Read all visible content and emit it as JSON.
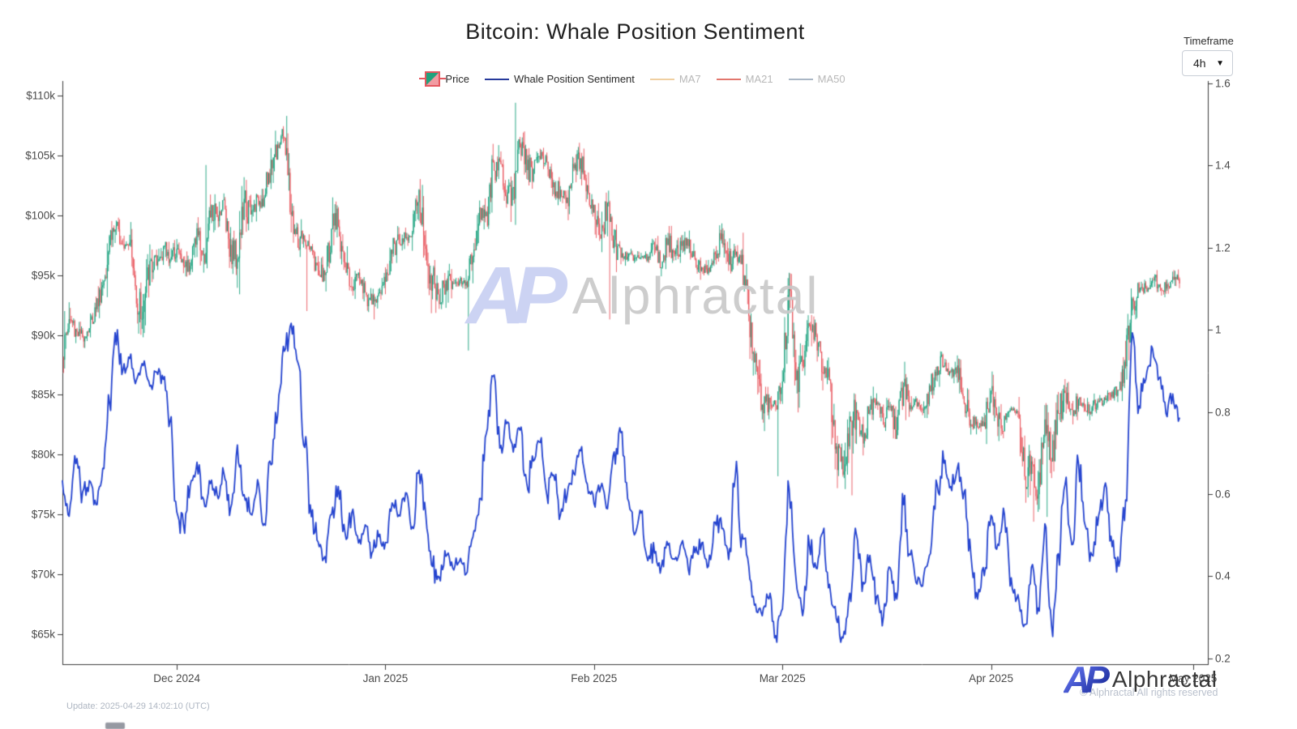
{
  "title": "Bitcoin: Whale Position Sentiment",
  "timeframe": {
    "label": "Timeframe",
    "value": "4h"
  },
  "watermark": {
    "monogram": "AP",
    "text": "Alphractal"
  },
  "footer": {
    "update_text": "Update: 2025-04-29 14:02:10 (UTC)"
  },
  "branding": {
    "monogram": "AP",
    "name": "Alphractal",
    "copyright": "© Alphractal All rights reserved"
  },
  "chart_data": {
    "type": "mixed",
    "title": "Bitcoin: Whale Position Sentiment",
    "grid": false,
    "legend_position": "top-center",
    "legend": [
      {
        "label": "Price",
        "swatch": "candle",
        "color": "#22a27d",
        "muted": false
      },
      {
        "label": "Whale Position Sentiment",
        "swatch": "line",
        "color": "#26399b",
        "muted": false
      },
      {
        "label": "MA7",
        "swatch": "line",
        "color": "#f0cfa0",
        "muted": true
      },
      {
        "label": "MA21",
        "swatch": "line",
        "color": "#e2766d",
        "muted": true
      },
      {
        "label": "MA50",
        "swatch": "line",
        "color": "#a9b6c5",
        "muted": true
      }
    ],
    "start_date": "2024-11-14",
    "interval_days": 1,
    "series": [
      {
        "name": "Price",
        "type": "candlestick",
        "axis": "left",
        "unit": "USD (thousands)",
        "color_up": "#16a07c",
        "color_down": "#e8545b",
        "close_k": [
          88.2,
          91.3,
          90.5,
          89.8,
          90.6,
          92.3,
          94.2,
          98.4,
          99.0,
          97.7,
          98.0,
          93.0,
          91.9,
          95.9,
          95.6,
          97.4,
          96.4,
          97.2,
          95.8,
          96.0,
          98.8,
          96.5,
          99.9,
          99.9,
          101.2,
          97.3,
          96.6,
          101.1,
          100.0,
          101.4,
          101.4,
          104.4,
          106.0,
          106.7,
          100.1,
          97.4,
          97.8,
          97.2,
          95.2,
          94.9,
          98.6,
          99.3,
          95.7,
          94.2,
          95.3,
          93.5,
          92.6,
          93.4,
          94.6,
          96.9,
          98.0,
          98.2,
          98.3,
          102.1,
          96.9,
          95.0,
          92.5,
          94.7,
          94.3,
          94.5,
          94.5,
          96.6,
          100.5,
          100.0,
          104.1,
          104.4,
          101.3,
          102.0,
          106.1,
          103.7,
          103.9,
          104.8,
          104.7,
          102.6,
          102.1,
          101.3,
          103.7,
          104.7,
          102.4,
          100.6,
          97.7,
          101.3,
          97.8,
          96.6,
          96.6,
          96.5,
          96.5,
          96.5,
          97.4,
          95.8,
          97.9,
          96.6,
          97.5,
          97.6,
          96.2,
          95.7,
          95.6,
          96.6,
          98.3,
          96.1,
          96.6,
          96.3,
          91.4,
          88.7,
          84.0,
          84.7,
          84.3,
          86.0,
          94.2,
          86.0,
          87.2,
          90.6,
          89.9,
          86.8,
          86.2,
          80.7,
          78.6,
          82.9,
          83.7,
          81.1,
          83.9,
          84.3,
          82.6,
          84.0,
          81.7,
          85.8,
          84.2,
          84.0,
          83.8,
          85.5,
          87.5,
          87.5,
          86.9,
          87.2,
          84.3,
          82.6,
          82.3,
          82.5,
          85.2,
          82.5,
          83.2,
          83.8,
          83.5,
          78.2,
          79.2,
          76.3,
          82.6,
          79.6,
          83.4,
          85.3,
          83.7,
          84.5,
          83.7,
          84.0,
          84.5,
          84.5,
          85.2,
          85.2,
          87.5,
          93.4,
          93.7,
          94.0,
          94.7,
          94.3,
          93.9,
          95.0,
          94.4
        ],
        "extremes": {
          "2024-11-14": {
            "low": 87.2,
            "high": 92.0
          },
          "2024-11-26": {
            "low": 90.8
          },
          "2024-12-05": {
            "high": 104.2
          },
          "2024-12-10": {
            "low": 93.4
          },
          "2024-12-17": {
            "high": 108.3
          },
          "2024-12-20": {
            "low": 92.0
          },
          "2024-12-30": {
            "low": 91.3
          },
          "2025-01-13": {
            "low": 88.7
          },
          "2025-01-20": {
            "high": 109.4,
            "low": 99.2
          },
          "2025-02-03": {
            "low": 91.3
          },
          "2025-02-28": {
            "low": 78.2
          },
          "2025-03-02": {
            "high": 95.1
          },
          "2025-03-11": {
            "low": 76.6
          },
          "2025-04-07": {
            "low": 74.4
          },
          "2025-04-09": {
            "low": 74.8,
            "high": 83.6
          }
        }
      },
      {
        "name": "Whale Position Sentiment",
        "type": "line",
        "axis": "right",
        "color": "#2544cf",
        "values": [
          0.63,
          0.55,
          0.68,
          0.6,
          0.63,
          0.58,
          0.66,
          0.82,
          0.97,
          0.9,
          0.93,
          0.88,
          0.91,
          0.86,
          0.9,
          0.88,
          0.78,
          0.55,
          0.52,
          0.62,
          0.68,
          0.58,
          0.63,
          0.6,
          0.65,
          0.56,
          0.72,
          0.6,
          0.55,
          0.63,
          0.52,
          0.68,
          0.8,
          0.95,
          1.01,
          0.92,
          0.72,
          0.55,
          0.48,
          0.45,
          0.55,
          0.62,
          0.5,
          0.55,
          0.48,
          0.52,
          0.46,
          0.5,
          0.48,
          0.58,
          0.55,
          0.6,
          0.52,
          0.66,
          0.55,
          0.42,
          0.4,
          0.45,
          0.42,
          0.44,
          0.41,
          0.5,
          0.58,
          0.75,
          0.88,
          0.72,
          0.77,
          0.7,
          0.75,
          0.62,
          0.68,
          0.72,
          0.6,
          0.65,
          0.55,
          0.6,
          0.65,
          0.7,
          0.62,
          0.58,
          0.62,
          0.56,
          0.7,
          0.75,
          0.58,
          0.5,
          0.55,
          0.44,
          0.46,
          0.42,
          0.48,
          0.44,
          0.48,
          0.42,
          0.46,
          0.48,
          0.43,
          0.53,
          0.52,
          0.44,
          0.65,
          0.5,
          0.42,
          0.33,
          0.3,
          0.35,
          0.26,
          0.32,
          0.62,
          0.4,
          0.3,
          0.48,
          0.42,
          0.5,
          0.38,
          0.3,
          0.25,
          0.35,
          0.5,
          0.38,
          0.45,
          0.35,
          0.3,
          0.42,
          0.35,
          0.58,
          0.45,
          0.38,
          0.4,
          0.45,
          0.62,
          0.68,
          0.62,
          0.66,
          0.6,
          0.45,
          0.35,
          0.4,
          0.55,
          0.48,
          0.55,
          0.4,
          0.35,
          0.28,
          0.42,
          0.32,
          0.52,
          0.28,
          0.45,
          0.62,
          0.48,
          0.67,
          0.52,
          0.45,
          0.55,
          0.62,
          0.48,
          0.42,
          0.58,
          1.0,
          0.82,
          0.88,
          0.95,
          0.88,
          0.8,
          0.84,
          0.78
        ]
      }
    ],
    "x_axis": {
      "ticks": [
        {
          "label": "Dec 2024",
          "date": "2024-12-01"
        },
        {
          "label": "Jan 2025",
          "date": "2025-01-01"
        },
        {
          "label": "Feb 2025",
          "date": "2025-02-01"
        },
        {
          "label": "Mar 2025",
          "date": "2025-03-01"
        },
        {
          "label": "Apr 2025",
          "date": "2025-04-01"
        },
        {
          "label": "May 2025",
          "date": "2025-05-01"
        }
      ]
    },
    "y_axis_left": {
      "unit": "USD",
      "tick_labels": [
        "$110k",
        "$105k",
        "$100k",
        "$95k",
        "$90k",
        "$85k",
        "$80k",
        "$75k",
        "$70k",
        "$65k"
      ],
      "tick_values_k": [
        110,
        105,
        100,
        95,
        90,
        85,
        80,
        75,
        70,
        65
      ],
      "range_k": [
        63.9,
        111.2
      ]
    },
    "y_axis_right": {
      "unit": "sentiment",
      "tick_labels": [
        "1.6",
        "1.4",
        "1.2",
        "1",
        "0.8",
        "0.6",
        "0.4",
        "0.2"
      ],
      "tick_values": [
        1.6,
        1.4,
        1.2,
        1.0,
        0.8,
        0.6,
        0.4,
        0.2
      ],
      "range": [
        0.186,
        1.634
      ]
    }
  }
}
